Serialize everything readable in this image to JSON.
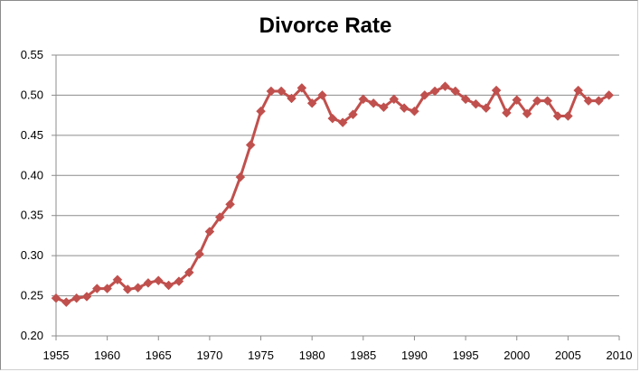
{
  "chart_data": {
    "type": "line",
    "title": "Divorce Rate",
    "xlabel": "",
    "ylabel": "",
    "xlim": [
      1955,
      2010
    ],
    "ylim": [
      0.2,
      0.55
    ],
    "x_ticks": [
      "1955",
      "1960",
      "1965",
      "1970",
      "1975",
      "1980",
      "1985",
      "1990",
      "1995",
      "2000",
      "2005",
      "2010"
    ],
    "y_ticks": [
      "0.55",
      "0.50",
      "0.45",
      "0.40",
      "0.35",
      "0.30",
      "0.25",
      "0.20"
    ],
    "grid": "horizontal",
    "legend": "none",
    "series": [
      {
        "color": "#c0504d",
        "marker": "diamond",
        "x": [
          1955,
          1956,
          1957,
          1958,
          1959,
          1960,
          1961,
          1962,
          1963,
          1964,
          1965,
          1966,
          1967,
          1968,
          1969,
          1970,
          1971,
          1972,
          1973,
          1974,
          1975,
          1976,
          1977,
          1978,
          1979,
          1980,
          1981,
          1982,
          1983,
          1984,
          1985,
          1986,
          1987,
          1988,
          1989,
          1990,
          1991,
          1992,
          1993,
          1994,
          1995,
          1996,
          1997,
          1998,
          1999,
          2000,
          2001,
          2002,
          2003,
          2004,
          2005,
          2006,
          2007,
          2008,
          2009
        ],
        "values": [
          0.247,
          0.242,
          0.247,
          0.249,
          0.259,
          0.259,
          0.27,
          0.258,
          0.26,
          0.266,
          0.269,
          0.263,
          0.268,
          0.279,
          0.302,
          0.33,
          0.348,
          0.364,
          0.398,
          0.438,
          0.48,
          0.505,
          0.505,
          0.496,
          0.509,
          0.49,
          0.5,
          0.471,
          0.466,
          0.476,
          0.495,
          0.49,
          0.485,
          0.495,
          0.484,
          0.48,
          0.5,
          0.505,
          0.511,
          0.505,
          0.495,
          0.489,
          0.484,
          0.506,
          0.478,
          0.494,
          0.477,
          0.493,
          0.493,
          0.474,
          0.474,
          0.506,
          0.493,
          0.493,
          0.5
        ]
      }
    ]
  }
}
